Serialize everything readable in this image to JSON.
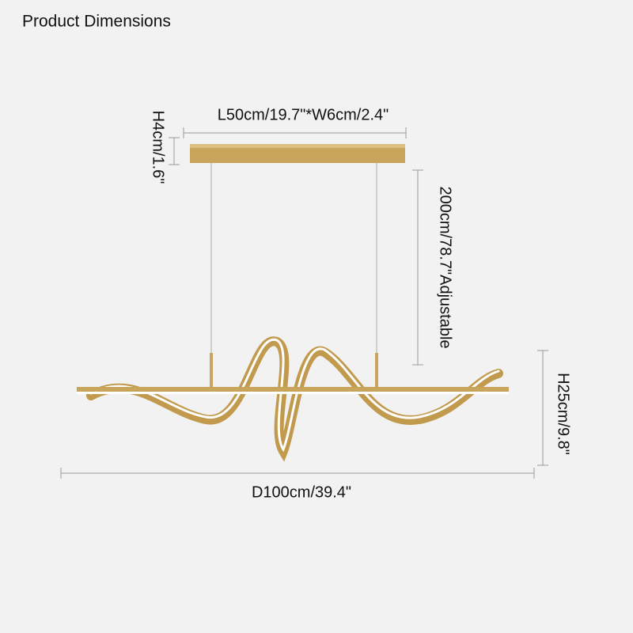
{
  "header": {
    "title": "Product Dimensions"
  },
  "dimensions": {
    "canopy_size": "L50cm/19.7\"*W6cm/2.4\"",
    "canopy_height": "H4cm/1.6\"",
    "cable_length": "200cm/78.7\"Adjustable",
    "fixture_height": "H25cm/9.8\"",
    "fixture_length": "D100cm/39.4\""
  }
}
